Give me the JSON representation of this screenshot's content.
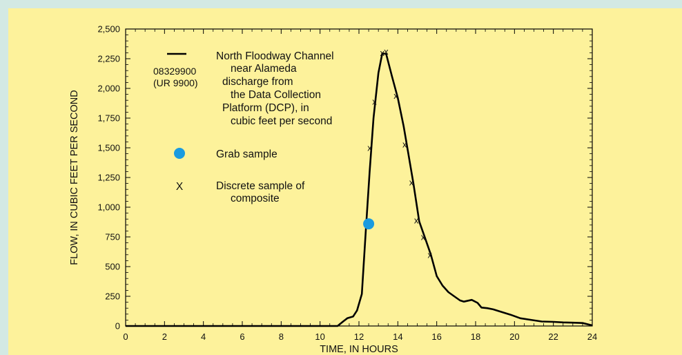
{
  "colors": {
    "page_background": "#d3e9e3",
    "panel_background": "#fdf29b",
    "line": "#000000",
    "grab_sample": "#1a9be0"
  },
  "chart_data": {
    "type": "line",
    "title": "",
    "xlabel": "TIME, IN HOURS",
    "ylabel": "FLOW, IN CUBIC FEET PER SECOND",
    "xlim": [
      0,
      24
    ],
    "ylim": [
      0,
      2500
    ],
    "x_ticks": [
      0,
      2,
      4,
      6,
      8,
      10,
      12,
      14,
      16,
      18,
      20,
      22,
      24
    ],
    "x_tick_labels": [
      "0",
      "2",
      "4",
      "6",
      "8",
      "10",
      "12",
      "14",
      "16",
      "18",
      "20",
      "22",
      "24"
    ],
    "y_ticks": [
      0,
      250,
      500,
      750,
      1000,
      1250,
      1500,
      1750,
      2000,
      2250,
      2500
    ],
    "y_tick_labels": [
      "0",
      "250",
      "500",
      "750",
      "1,000",
      "1,250",
      "1,500",
      "1,750",
      "2,000",
      "2,250",
      "2,500"
    ],
    "grid": false,
    "series": [
      {
        "name": "North Floodway Channel near Alameda discharge from the Data Collection Platform (DCP), in cubic feet per second",
        "type": "line",
        "points": [
          [
            0,
            0
          ],
          [
            10.9,
            0
          ],
          [
            11.2,
            40
          ],
          [
            11.4,
            65
          ],
          [
            11.7,
            80
          ],
          [
            11.9,
            130
          ],
          [
            12.15,
            270
          ],
          [
            12.35,
            800
          ],
          [
            12.55,
            1300
          ],
          [
            12.75,
            1750
          ],
          [
            13.0,
            2130
          ],
          [
            13.2,
            2295
          ],
          [
            13.4,
            2290
          ],
          [
            13.7,
            2100
          ],
          [
            14.0,
            1920
          ],
          [
            14.3,
            1680
          ],
          [
            14.5,
            1490
          ],
          [
            14.8,
            1200
          ],
          [
            15.1,
            880
          ],
          [
            15.4,
            740
          ],
          [
            15.7,
            600
          ],
          [
            16.0,
            420
          ],
          [
            16.3,
            340
          ],
          [
            16.6,
            285
          ],
          [
            16.9,
            250
          ],
          [
            17.2,
            215
          ],
          [
            17.4,
            205
          ],
          [
            17.8,
            220
          ],
          [
            18.1,
            195
          ],
          [
            18.3,
            155
          ],
          [
            18.6,
            150
          ],
          [
            18.9,
            140
          ],
          [
            19.3,
            120
          ],
          [
            19.8,
            95
          ],
          [
            20.3,
            65
          ],
          [
            20.9,
            50
          ],
          [
            21.4,
            38
          ],
          [
            22.0,
            35
          ],
          [
            22.5,
            30
          ],
          [
            23.0,
            28
          ],
          [
            23.5,
            25
          ],
          [
            24.0,
            5
          ]
        ]
      },
      {
        "name": "Grab sample",
        "type": "scatter",
        "marker": "circle",
        "points": [
          [
            12.5,
            860
          ]
        ]
      },
      {
        "name": "Discrete sample of composite",
        "type": "scatter",
        "marker": "x",
        "points": [
          [
            12.55,
            1500
          ],
          [
            12.8,
            1890
          ],
          [
            13.2,
            2300
          ],
          [
            13.4,
            2310
          ],
          [
            13.9,
            1940
          ],
          [
            14.35,
            1530
          ],
          [
            14.7,
            1210
          ],
          [
            14.95,
            890
          ],
          [
            15.3,
            750
          ],
          [
            15.65,
            600
          ]
        ]
      }
    ],
    "legend": {
      "placement": "top-left",
      "line_entry": {
        "id_line1": "08329900",
        "id_line2": "(UR 9900)",
        "text_lines": [
          "North Floodway Channel",
          "near Alameda",
          "discharge from",
          "the Data Collection",
          "Platform (DCP), in",
          "cubic feet per second"
        ]
      },
      "grab_entry": {
        "text": "Grab sample"
      },
      "discrete_entry": {
        "symbol": "X",
        "text_lines": [
          "Discrete sample of",
          "composite"
        ]
      }
    }
  }
}
